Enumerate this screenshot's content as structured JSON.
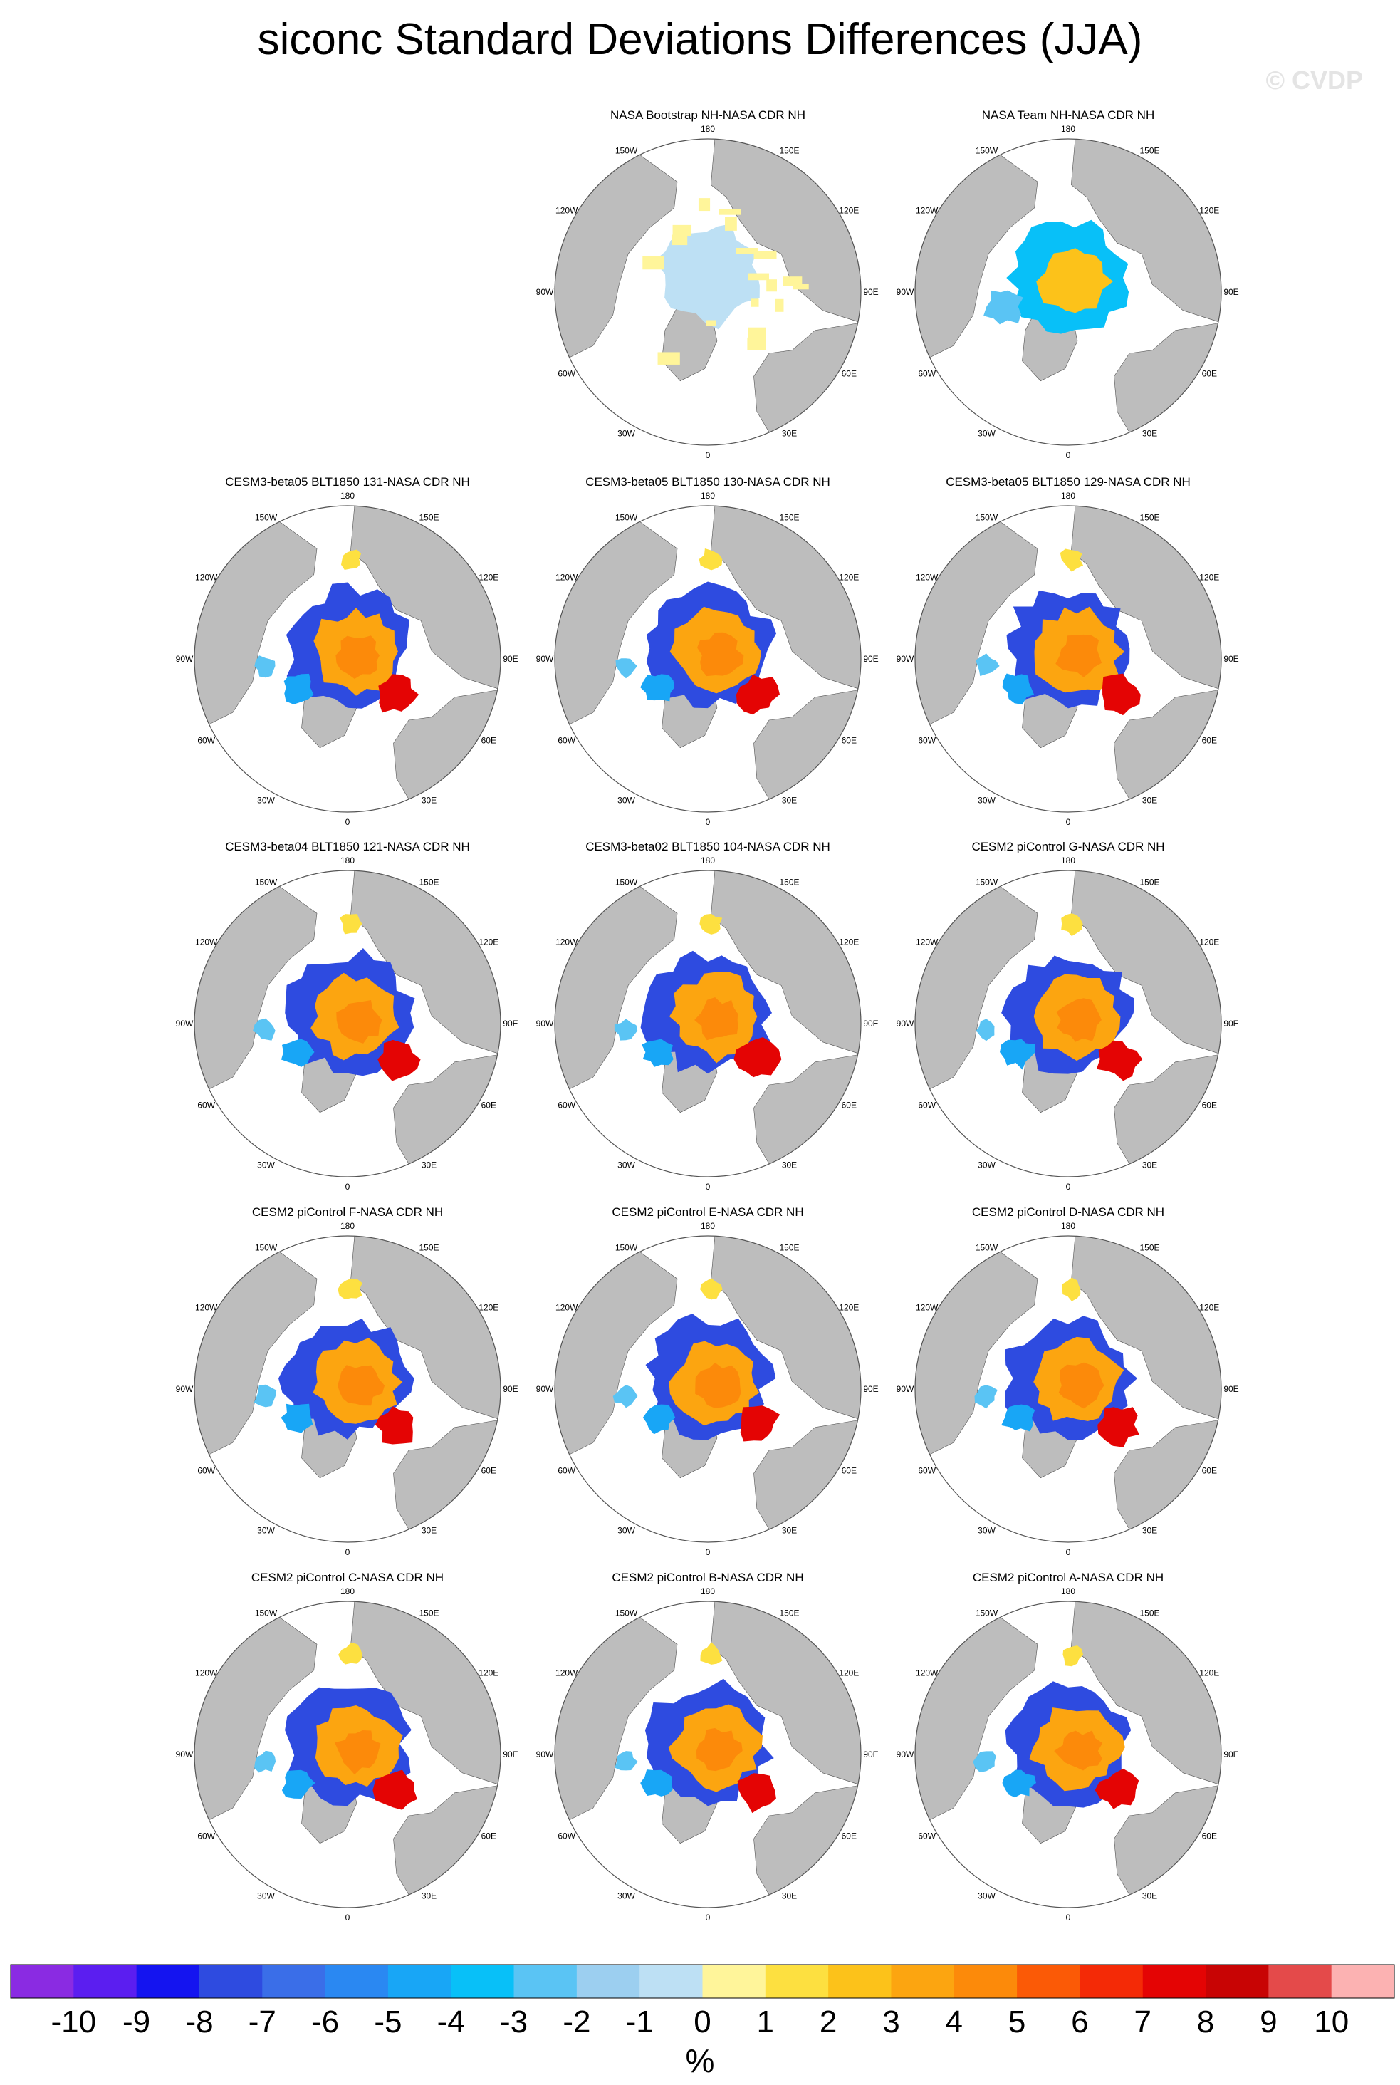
{
  "title": "siconc Standard Deviations Differences (JJA)",
  "watermark": "© CVDP",
  "chart_data": {
    "type": "heatmap",
    "projection": "north polar stereographic",
    "variable": "siconc",
    "season": "JJA",
    "statistic": "Standard Deviations Differences",
    "longitude_labels": [
      "180",
      "150E",
      "120E",
      "90E",
      "60E",
      "30E",
      "0",
      "30W",
      "60W",
      "90W",
      "120W",
      "150W"
    ],
    "panels": [
      {
        "title": "NASA Bootstrap NH-NASA CDR NH",
        "pattern": "bootstrap"
      },
      {
        "title": "NASA Team NH-NASA CDR NH",
        "pattern": "team"
      },
      {
        "title": "CESM3-beta05 BLT1850 131-NASA CDR NH",
        "pattern": "model"
      },
      {
        "title": "CESM3-beta05 BLT1850 130-NASA CDR NH",
        "pattern": "model"
      },
      {
        "title": "CESM3-beta05 BLT1850 129-NASA CDR NH",
        "pattern": "model"
      },
      {
        "title": "CESM3-beta04 BLT1850 121-NASA CDR NH",
        "pattern": "model"
      },
      {
        "title": "CESM3-beta02 BLT1850 104-NASA CDR NH",
        "pattern": "model"
      },
      {
        "title": "CESM2 piControl G-NASA CDR NH",
        "pattern": "model"
      },
      {
        "title": "CESM2 piControl F-NASA CDR NH",
        "pattern": "model"
      },
      {
        "title": "CESM2 piControl E-NASA CDR NH",
        "pattern": "model"
      },
      {
        "title": "CESM2 piControl D-NASA CDR NH",
        "pattern": "model"
      },
      {
        "title": "CESM2 piControl C-NASA CDR NH",
        "pattern": "model"
      },
      {
        "title": "CESM2 piControl B-NASA CDR NH",
        "pattern": "model"
      },
      {
        "title": "CESM2 piControl A-NASA CDR NH",
        "pattern": "model"
      }
    ],
    "colorbar": {
      "labels": [
        "-10",
        "-9",
        "-8",
        "-7",
        "-6",
        "-5",
        "-4",
        "-3",
        "-2",
        "-1",
        "0",
        "1",
        "2",
        "3",
        "4",
        "5",
        "6",
        "7",
        "8",
        "9",
        "10"
      ],
      "units": "%",
      "colors": [
        "#8a2be2",
        "#5b1ef0",
        "#1414f0",
        "#2e4be0",
        "#3a6ee8",
        "#2a88f2",
        "#18a6f6",
        "#08c0f8",
        "#5ac4f4",
        "#9ccff0",
        "#bde0f4",
        "#fff59a",
        "#fde040",
        "#fcc21a",
        "#fca510",
        "#fc8a0a",
        "#fb5a06",
        "#f42a06",
        "#e40404",
        "#c80404",
        "#e44a4a",
        "#fcb2b2"
      ]
    }
  }
}
